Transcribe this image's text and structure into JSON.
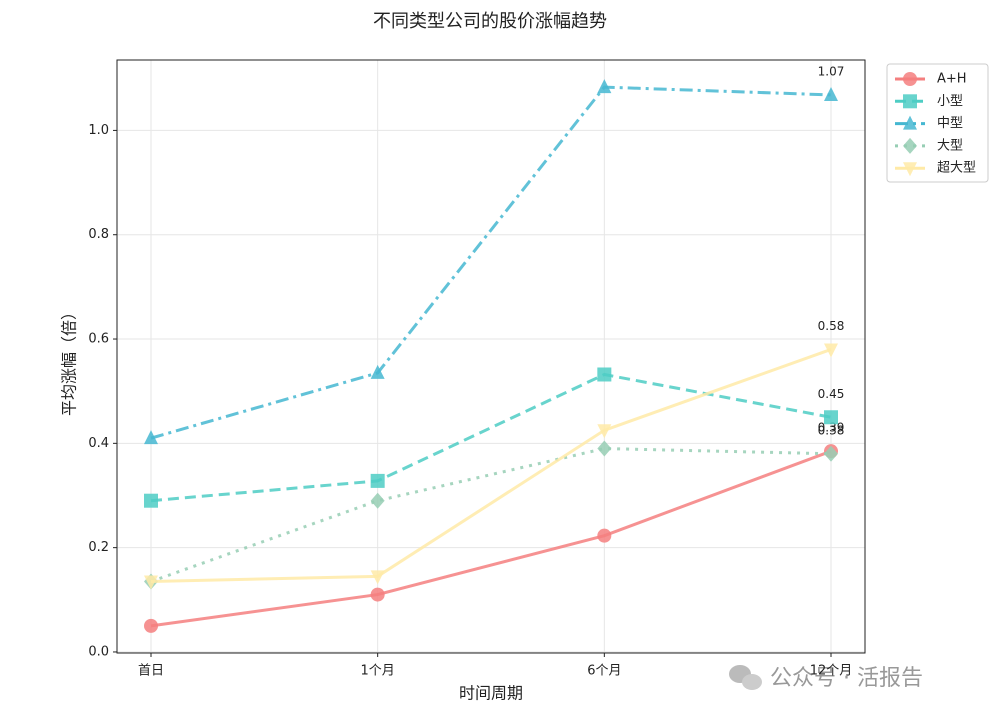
{
  "chart_data": {
    "type": "line",
    "title": "不同类型公司的股价涨幅趋势",
    "x_label": "时间周期",
    "y_label": "平均涨幅（倍）",
    "categories": [
      "首日",
      "1个月",
      "6个月",
      "12个月"
    ],
    "series": [
      {
        "name": "A+H",
        "color": "#f47f7f",
        "linestyle": "solid",
        "marker": "circle",
        "values": [
          0.05,
          0.11,
          0.223,
          0.385
        ],
        "value_labels": [
          null,
          null,
          null,
          "0.39"
        ]
      },
      {
        "name": "小型",
        "color": "#4ecdc4",
        "linestyle": "dashed",
        "marker": "square",
        "values": [
          0.29,
          0.328,
          0.532,
          0.45
        ],
        "value_labels": [
          null,
          null,
          null,
          "0.45"
        ]
      },
      {
        "name": "中型",
        "color": "#45b7d1",
        "linestyle": "dashdot",
        "marker": "triangle-up",
        "values": [
          0.41,
          0.535,
          1.083,
          1.068
        ],
        "value_labels": [
          null,
          null,
          null,
          "1.07"
        ]
      },
      {
        "name": "大型",
        "color": "#96ceb4",
        "linestyle": "dotted",
        "marker": "diamond",
        "values": [
          0.135,
          0.29,
          0.39,
          0.38
        ],
        "value_labels": [
          null,
          null,
          null,
          "0.38"
        ]
      },
      {
        "name": "超大型",
        "color": "#ffeaa7",
        "linestyle": "solid",
        "marker": "triangle-down",
        "values": [
          0.135,
          0.145,
          0.425,
          0.58
        ],
        "value_labels": [
          null,
          null,
          null,
          "0.58"
        ]
      }
    ],
    "ylim": [
      -0.002,
      1.135
    ],
    "yticks": [
      {
        "value": 0,
        "label": "0.0"
      },
      0.2,
      0.4,
      0.6,
      0.8,
      {
        "value": 1,
        "label": "1.0"
      }
    ],
    "grid": true,
    "legend": "outside upper right"
  },
  "watermark": "公众号 · 活报告"
}
